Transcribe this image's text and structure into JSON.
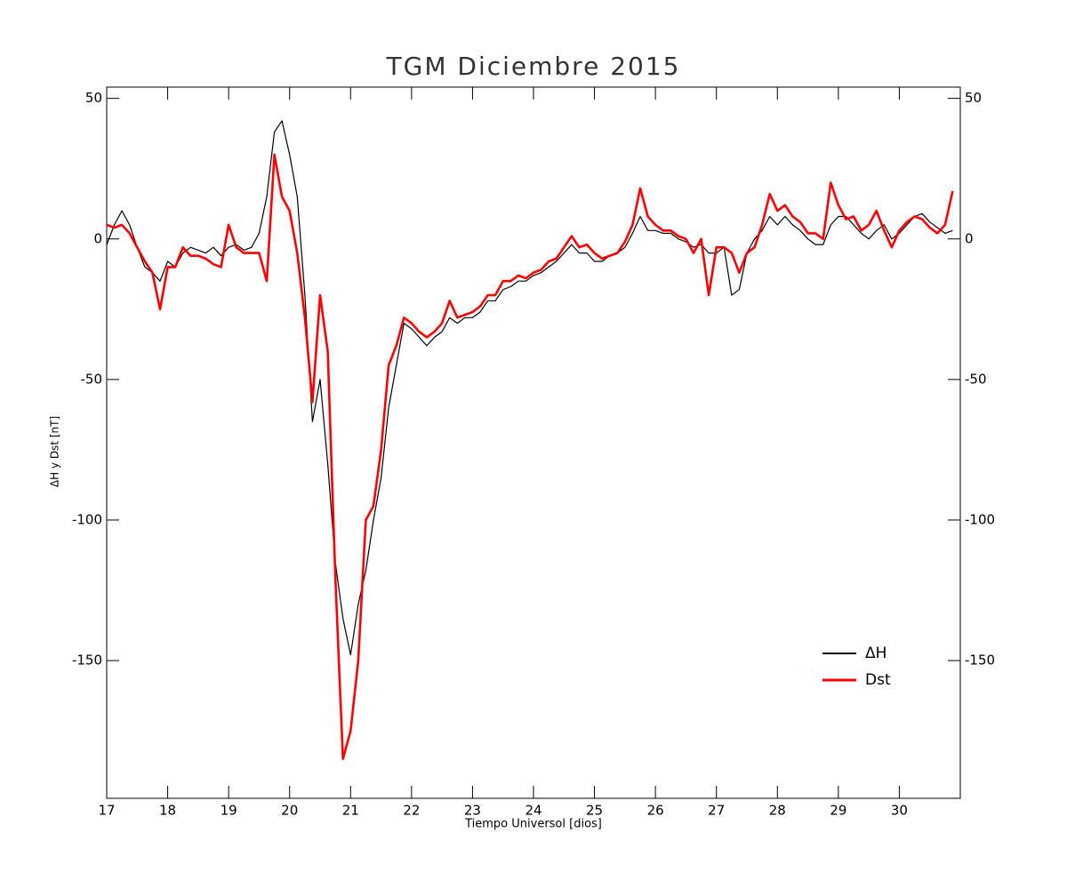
{
  "chart_data": {
    "type": "line",
    "title": "TGM Diciembre 2015",
    "x_label": "Tiempo Universol [dios]",
    "y_label": "ΔH y Dst [nT]",
    "x": [
      17,
      17.125,
      17.25,
      17.375,
      17.5,
      17.625,
      17.75,
      17.875,
      18,
      18.125,
      18.25,
      18.375,
      18.5,
      18.625,
      18.75,
      18.875,
      19,
      19.125,
      19.25,
      19.375,
      19.5,
      19.625,
      19.75,
      19.875,
      20,
      20.125,
      20.25,
      20.375,
      20.5,
      20.625,
      20.75,
      20.875,
      21,
      21.125,
      21.25,
      21.375,
      21.5,
      21.625,
      21.75,
      21.875,
      22,
      22.125,
      22.25,
      22.375,
      22.5,
      22.625,
      22.75,
      22.875,
      23,
      23.125,
      23.25,
      23.375,
      23.5,
      23.625,
      23.75,
      23.875,
      24,
      24.125,
      24.25,
      24.375,
      24.5,
      24.625,
      24.75,
      24.875,
      25,
      25.125,
      25.25,
      25.375,
      25.5,
      25.625,
      25.75,
      25.875,
      26,
      26.125,
      26.25,
      26.375,
      26.5,
      26.625,
      26.75,
      26.875,
      27,
      27.125,
      27.25,
      27.375,
      27.5,
      27.625,
      27.75,
      27.875,
      28,
      28.125,
      28.25,
      28.375,
      28.5,
      28.625,
      28.75,
      28.875,
      29,
      29.125,
      29.25,
      29.375,
      29.5,
      29.625,
      29.75,
      29.875,
      30,
      30.125,
      30.25,
      30.375,
      30.5,
      30.625,
      30.75,
      30.875
    ],
    "series": [
      {
        "name": "ΔH",
        "color": "#000000",
        "values": [
          -2,
          5,
          10,
          5,
          -3,
          -10,
          -12,
          -15,
          -8,
          -10,
          -5,
          -3,
          -4,
          -5,
          -3,
          -6,
          -3,
          -2,
          -4,
          -3,
          2,
          15,
          38,
          42,
          30,
          15,
          -20,
          -65,
          -50,
          -80,
          -115,
          -135,
          -148,
          -130,
          -118,
          -100,
          -85,
          -60,
          -45,
          -30,
          -32,
          -35,
          -38,
          -35,
          -33,
          -28,
          -30,
          -28,
          -28,
          -26,
          -22,
          -22,
          -18,
          -17,
          -15,
          -15,
          -13,
          -12,
          -10,
          -8,
          -5,
          -2,
          -5,
          -5,
          -8,
          -8,
          -6,
          -5,
          -3,
          2,
          8,
          3,
          3,
          2,
          2,
          0,
          -1,
          -3,
          -2,
          -5,
          -5,
          -3,
          -20,
          -18,
          -5,
          0,
          3,
          8,
          5,
          8,
          5,
          3,
          0,
          -2,
          -2,
          5,
          8,
          8,
          5,
          2,
          0,
          3,
          5,
          0,
          2,
          5,
          8,
          9,
          6,
          4,
          2,
          3
        ]
      },
      {
        "name": "Dst",
        "color": "#ff0000",
        "values": [
          5,
          4,
          5,
          2,
          -3,
          -8,
          -12,
          -25,
          -10,
          -10,
          -3,
          -6,
          -6,
          -7,
          -9,
          -10,
          5,
          -3,
          -5,
          -5,
          -5,
          -15,
          30,
          15,
          10,
          -5,
          -28,
          -58,
          -20,
          -40,
          -120,
          -185,
          -175,
          -150,
          -100,
          -95,
          -75,
          -45,
          -38,
          -28,
          -30,
          -33,
          -35,
          -33,
          -30,
          -22,
          -28,
          -27,
          -26,
          -24,
          -20,
          -20,
          -15,
          -15,
          -13,
          -14,
          -12,
          -11,
          -8,
          -7,
          -3,
          1,
          -3,
          -2,
          -5,
          -7,
          -6,
          -5,
          -1,
          5,
          18,
          8,
          5,
          3,
          3,
          1,
          0,
          -5,
          0,
          -20,
          -3,
          -3,
          -5,
          -12,
          -5,
          -3,
          5,
          16,
          10,
          12,
          8,
          6,
          2,
          2,
          0,
          20,
          12,
          7,
          8,
          3,
          5,
          10,
          3,
          -3,
          3,
          6,
          8,
          7,
          4,
          2,
          5,
          17
        ]
      }
    ],
    "xlim": [
      17,
      31
    ],
    "ylim": [
      -199,
      54
    ],
    "xticks": [
      17,
      18,
      19,
      20,
      21,
      22,
      23,
      24,
      25,
      26,
      27,
      28,
      29,
      30
    ],
    "yticks": [
      -150,
      -100,
      -50,
      0,
      50
    ],
    "legend": "lower right"
  }
}
